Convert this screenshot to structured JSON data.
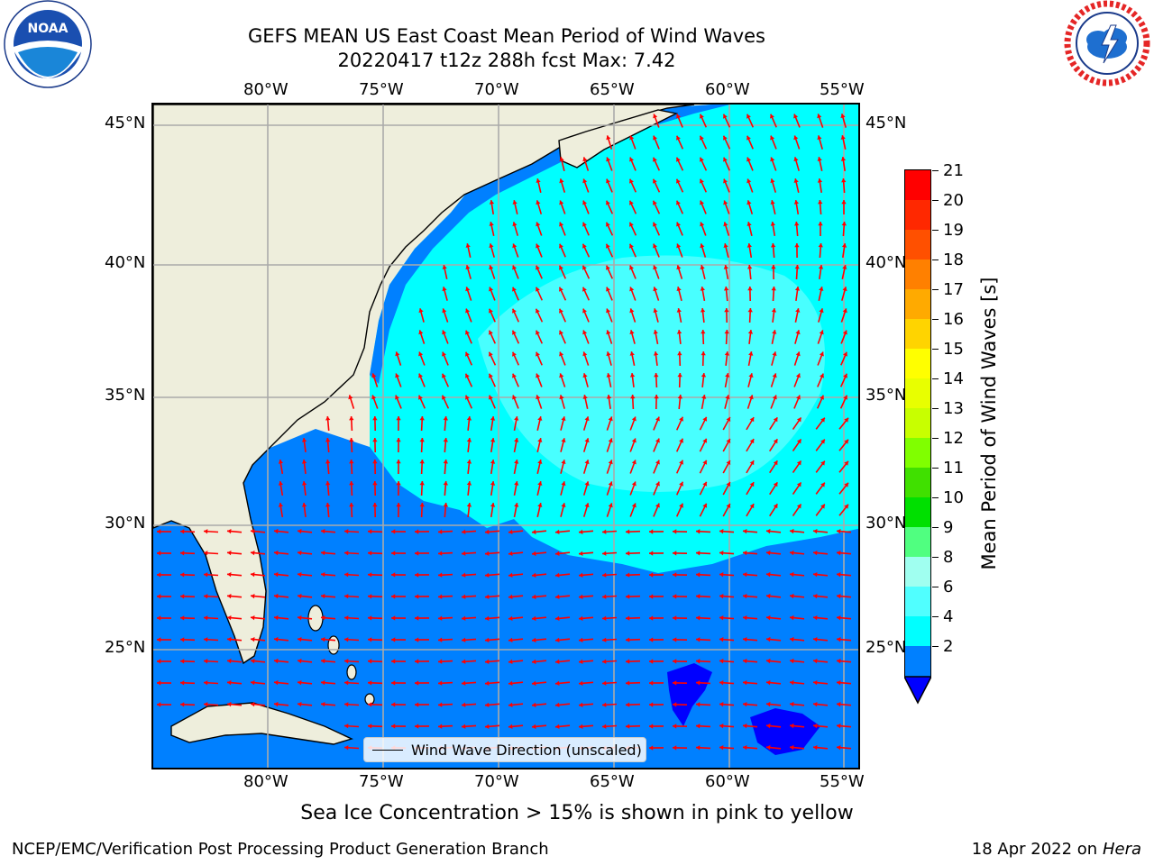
{
  "header": {
    "title_line1": "GEFS MEAN US East Coast Mean Period of Wind Waves",
    "title_line2": "20220417 t12z 288h fcst   Max: 7.42"
  },
  "logos": {
    "noaa": {
      "label": "NOAA",
      "ring_text": "NATIONAL OCEANIC AND ATMOSPHERIC ADMINISTRATION · U.S. DEPARTMENT OF COMMERCE"
    },
    "nws": {
      "ring_text": "NATIONAL WEATHER SERVICE"
    }
  },
  "map": {
    "lon_labels": [
      "80°W",
      "75°W",
      "70°W",
      "65°W",
      "60°W",
      "55°W"
    ],
    "lat_labels": [
      "45°N",
      "40°N",
      "35°N",
      "30°N",
      "25°N"
    ],
    "legend_label": "Wind Wave Direction (unscaled)",
    "arrow_color": "#ff0000",
    "land_color": "#eeeedc",
    "coast_color": "#000000"
  },
  "colorbar": {
    "label": "Mean Period of Wind Waves [s]",
    "ticks": [
      "21",
      "20",
      "19",
      "18",
      "17",
      "16",
      "15",
      "14",
      "13",
      "12",
      "11",
      "10",
      "9",
      "8",
      "6",
      "4",
      "2"
    ],
    "colors": [
      "#ff0000",
      "#ff2800",
      "#ff5000",
      "#ff8000",
      "#ffaa00",
      "#ffd400",
      "#ffff00",
      "#e8ff00",
      "#c8ff00",
      "#80ff00",
      "#40e000",
      "#00e000",
      "#50ff80",
      "#a0fff0",
      "#50ffff",
      "#00ffff",
      "#0080ff"
    ],
    "under_color": "#0000ff"
  },
  "note": "Sea Ice Concentration > 15% is shown in pink to yellow",
  "footer": {
    "left": "NCEP/EMC/Verification Post Processing Product Generation Branch",
    "right_date": "18 Apr 2022 on",
    "right_host": "Hera"
  }
}
